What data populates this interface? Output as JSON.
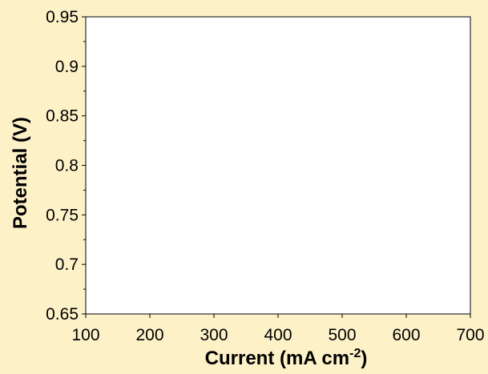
{
  "chart_data": {
    "type": "line",
    "title": "",
    "xlabel": "Current (mA cm",
    "xlabel_superscript": "-2",
    "xlabel_suffix": ")",
    "ylabel": "Potential (V)",
    "xlim": [
      100,
      700
    ],
    "ylim": [
      0.65,
      0.95
    ],
    "x_ticks": [
      100,
      200,
      300,
      400,
      500,
      600,
      700
    ],
    "x_tick_labels": [
      "100",
      "200",
      "300",
      "400",
      "500",
      "600",
      "700"
    ],
    "y_ticks": [
      0.65,
      0.7,
      0.75,
      0.8,
      0.85,
      0.9,
      0.95
    ],
    "y_tick_labels": [
      "0.65",
      "0.7",
      "0.75",
      "0.8",
      "0.85",
      "0.9",
      "0.95"
    ],
    "series": [],
    "grid": false,
    "legend": "none",
    "colors": {
      "background": "#fdf1c7",
      "plot_area": "#ffffff",
      "axis": "#000000",
      "text": "#000000"
    }
  }
}
